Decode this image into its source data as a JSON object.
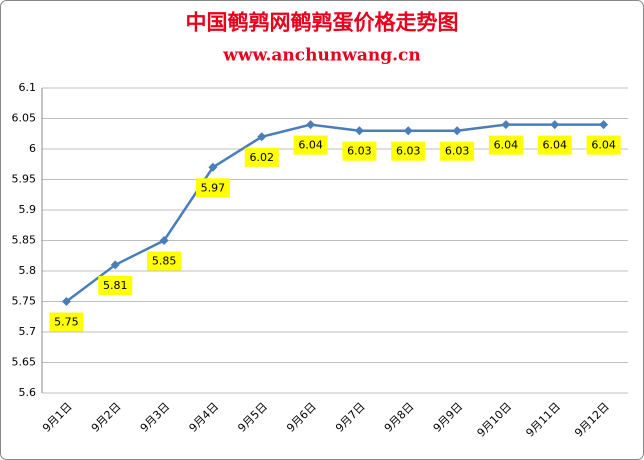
{
  "chart_data": {
    "type": "line",
    "title": "中国鹌鹑网鹌鹑蛋价格走势图",
    "subtitle": "www.anchunwang.cn",
    "categories": [
      "9月1日",
      "9月2日",
      "9月3日",
      "9月4日",
      "9月5日",
      "9月6日",
      "9月7日",
      "9月8日",
      "9月9日",
      "9月10日",
      "9月11日",
      "9月12日"
    ],
    "values": [
      5.75,
      5.81,
      5.85,
      5.97,
      6.02,
      6.04,
      6.03,
      6.03,
      6.03,
      6.04,
      6.04,
      6.04
    ],
    "color": "#4a7ebb",
    "label_color": "#ffff00",
    "ylim": [
      5.6,
      6.1
    ],
    "yticks": [
      5.6,
      5.65,
      5.7,
      5.75,
      5.8,
      5.85,
      5.9,
      5.95,
      6,
      6.05,
      6.1
    ],
    "grid": true
  }
}
